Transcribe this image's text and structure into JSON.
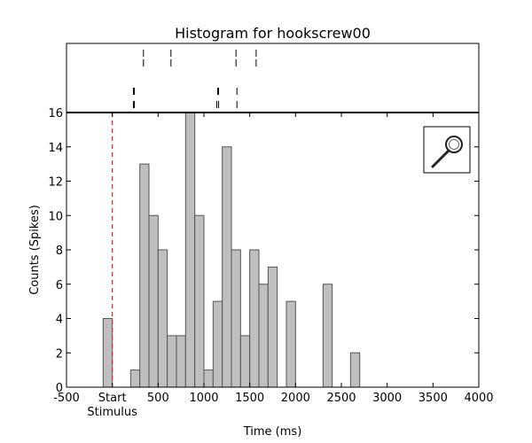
{
  "chart_data": {
    "type": "bar",
    "title": "Histogram for hookscrew00",
    "xlabel": "Time (ms)",
    "ylabel": "Counts (Spikes)",
    "xlim": [
      -500,
      4000
    ],
    "ylim": [
      0,
      16
    ],
    "grid": false,
    "x_ticks": [
      {
        "value": -500,
        "label": "-500"
      },
      {
        "value": 0,
        "label": "Start\nStimulus"
      },
      {
        "value": 500,
        "label": "500"
      },
      {
        "value": 1000,
        "label": "1000"
      },
      {
        "value": 1500,
        "label": "1500"
      },
      {
        "value": 2000,
        "label": "2000"
      },
      {
        "value": 2500,
        "label": "2500"
      },
      {
        "value": 3000,
        "label": "3000"
      },
      {
        "value": 3500,
        "label": "3500"
      },
      {
        "value": 4000,
        "label": "4000"
      }
    ],
    "y_ticks": [
      0,
      2,
      4,
      6,
      8,
      10,
      12,
      14,
      16
    ],
    "bin_width": 100,
    "bins": [
      {
        "start": -500,
        "count": 0
      },
      {
        "start": -400,
        "count": 0
      },
      {
        "start": -300,
        "count": 0
      },
      {
        "start": -200,
        "count": 0
      },
      {
        "start": -100,
        "count": 4
      },
      {
        "start": 0,
        "count": 0
      },
      {
        "start": 100,
        "count": 0
      },
      {
        "start": 200,
        "count": 1
      },
      {
        "start": 300,
        "count": 13
      },
      {
        "start": 400,
        "count": 10
      },
      {
        "start": 500,
        "count": 8
      },
      {
        "start": 600,
        "count": 3
      },
      {
        "start": 700,
        "count": 3
      },
      {
        "start": 800,
        "count": 16
      },
      {
        "start": 900,
        "count": 10
      },
      {
        "start": 1000,
        "count": 1
      },
      {
        "start": 1100,
        "count": 5
      },
      {
        "start": 1200,
        "count": 14
      },
      {
        "start": 1300,
        "count": 8
      },
      {
        "start": 1400,
        "count": 3
      },
      {
        "start": 1500,
        "count": 8
      },
      {
        "start": 1600,
        "count": 6
      },
      {
        "start": 1700,
        "count": 7
      },
      {
        "start": 1800,
        "count": 0
      },
      {
        "start": 1900,
        "count": 5
      },
      {
        "start": 2000,
        "count": 0
      },
      {
        "start": 2100,
        "count": 0
      },
      {
        "start": 2200,
        "count": 0
      },
      {
        "start": 2300,
        "count": 6
      },
      {
        "start": 2400,
        "count": 0
      },
      {
        "start": 2500,
        "count": 0
      },
      {
        "start": 2600,
        "count": 2
      },
      {
        "start": 2700,
        "count": 0
      },
      {
        "start": 2800,
        "count": 0
      },
      {
        "start": 2900,
        "count": 0
      },
      {
        "start": 3000,
        "count": 0
      },
      {
        "start": 3100,
        "count": 0
      },
      {
        "start": 3200,
        "count": 0
      },
      {
        "start": 3300,
        "count": 0
      },
      {
        "start": 3400,
        "count": 0
      },
      {
        "start": 3500,
        "count": 0
      },
      {
        "start": 3600,
        "count": 0
      },
      {
        "start": 3700,
        "count": 0
      },
      {
        "start": 3800,
        "count": 0
      },
      {
        "start": 3900,
        "count": 0
      }
    ],
    "stimulus_time": 0,
    "raster_rows": [
      [
        340,
        640,
        1350,
        1570
      ],
      [
        230,
        240,
        1150,
        1160,
        1360
      ],
      [
        230,
        240,
        1140,
        1160,
        1360
      ]
    ],
    "inset_image": "hookscrew-icon",
    "colors": {
      "bar_fill": "#bfbfbf",
      "bar_edge": "#555555",
      "stimulus_line": "#dd2222",
      "axes": "#000000"
    }
  }
}
